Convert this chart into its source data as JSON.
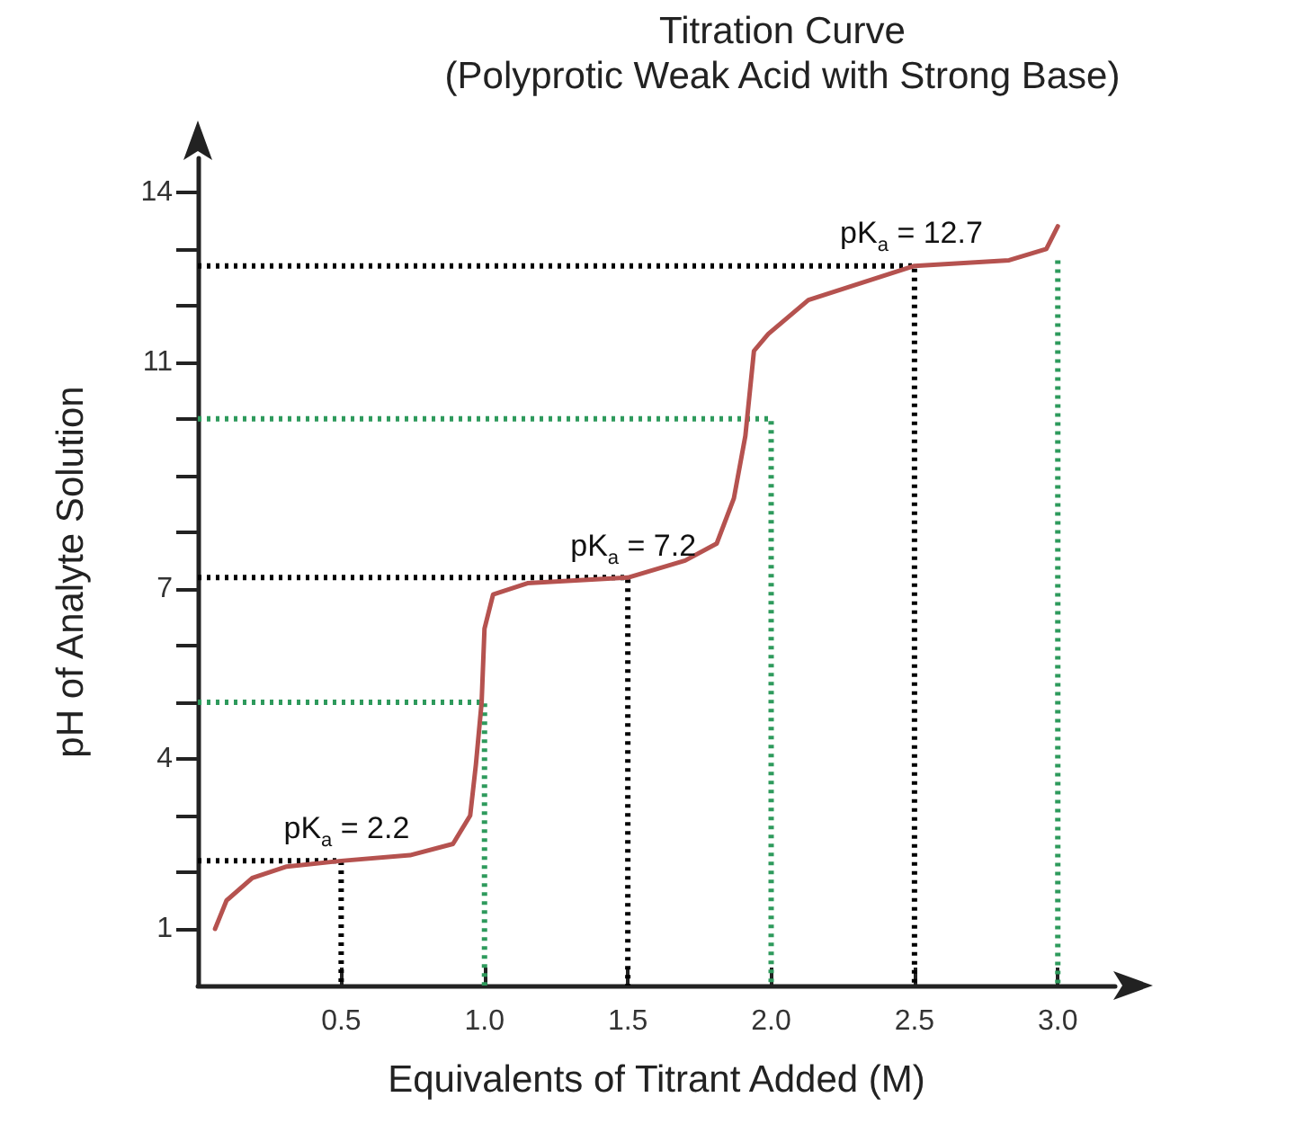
{
  "chart_data": {
    "type": "line",
    "title": "Titration Curve",
    "subtitle": "(Polyprotic Weak Acid with Strong Base)",
    "xlabel": "Equivalents of Titrant Added (M)",
    "ylabel": "pH of Analyte Solution",
    "xlim": [
      0,
      3.2
    ],
    "ylim": [
      0,
      14.6
    ],
    "xticks": [
      {
        "value": 0.5,
        "label": "0.5"
      },
      {
        "value": 1,
        "label": "1.0"
      },
      {
        "value": 1.5,
        "label": "1.5"
      },
      {
        "value": 2,
        "label": "2.0"
      },
      {
        "value": 2.5,
        "label": "2.5"
      },
      {
        "value": 3,
        "label": "3.0"
      }
    ],
    "yticks": [
      1,
      {
        "value": 2,
        "label": null
      },
      {
        "value": 3,
        "label": null
      },
      4,
      {
        "value": 5,
        "label": null
      },
      {
        "value": 6,
        "label": null
      },
      7,
      {
        "value": 8,
        "label": null
      },
      {
        "value": 9,
        "label": null
      },
      {
        "value": 10,
        "label": null
      },
      11,
      {
        "value": 12,
        "label": null
      },
      {
        "value": 13,
        "label": null
      },
      14
    ],
    "grid": false,
    "marker": "none",
    "series": [
      {
        "color": "#b5524f",
        "line_style": "solid",
        "x": [
          0.06,
          0.1,
          0.19,
          0.31,
          0.5,
          0.74,
          0.89,
          0.95,
          0.97,
          0.99,
          1.0,
          1.03,
          1.15,
          1.5,
          1.7,
          1.81,
          1.87,
          1.91,
          1.94,
          1.99,
          2.13,
          2.5,
          2.83,
          2.96,
          3.0
        ],
        "values": [
          1.0,
          1.5,
          1.9,
          2.1,
          2.2,
          2.3,
          2.5,
          3.0,
          3.9,
          5.0,
          6.3,
          6.9,
          7.1,
          7.2,
          7.5,
          7.8,
          8.6,
          9.7,
          11.2,
          11.5,
          12.1,
          12.7,
          12.8,
          13.0,
          13.4
        ]
      },
      {
        "color": "#000000",
        "line_style": "dotted",
        "x": [
          0,
          0.5,
          0.5
        ],
        "values": [
          2.2,
          2.2,
          0
        ]
      },
      {
        "color": "#000000",
        "line_style": "dotted",
        "x": [
          0,
          1.5,
          1.5
        ],
        "values": [
          7.2,
          7.2,
          0
        ]
      },
      {
        "color": "#000000",
        "line_style": "dotted",
        "x": [
          0,
          2.5,
          2.5
        ],
        "values": [
          12.7,
          12.7,
          0
        ]
      },
      {
        "color": "#2e9a5c",
        "line_style": "dotted",
        "x": [
          0,
          1,
          1
        ],
        "values": [
          5,
          5,
          0
        ]
      },
      {
        "color": "#2e9a5c",
        "line_style": "dotted",
        "x": [
          0,
          2,
          2
        ],
        "values": [
          10,
          10,
          0
        ]
      },
      {
        "color": "#2e9a5c",
        "line_style": "dotted",
        "x": [
          3,
          3
        ],
        "values": [
          12.8,
          0
        ]
      }
    ],
    "annotations": [
      {
        "text": "pK$_{a}$ = 2.2",
        "x": 0.5,
        "y": 2.2
      },
      {
        "text": "pK$_{a}$ = 7.2",
        "x": 1.5,
        "y": 7.2
      },
      {
        "text": "pK$_{a}$ = 12.7",
        "x": 2.5,
        "y": 12.7
      }
    ]
  }
}
